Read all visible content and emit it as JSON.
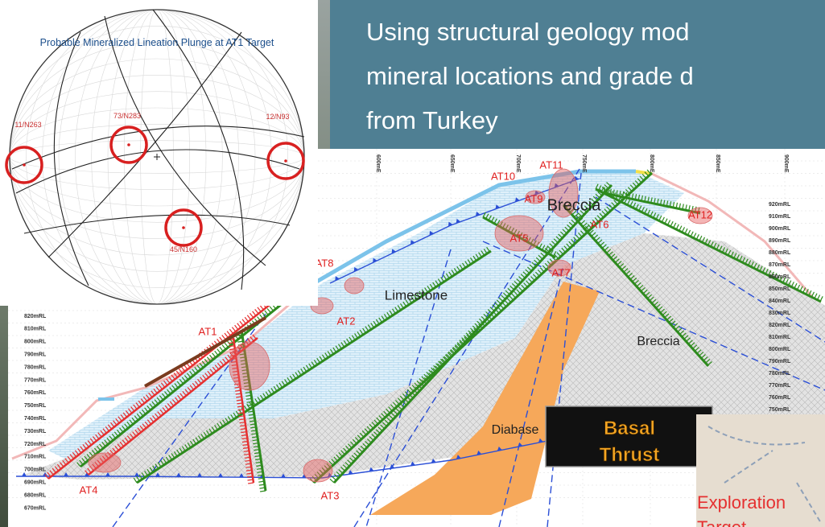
{
  "header": {
    "lines": [
      "Using structural geology mod",
      "mineral locations and grade d",
      "from Turkey"
    ]
  },
  "stereonet": {
    "title": "Probable Mineralized Lineation Plunge at AT1 Target",
    "labels": [
      "11/N263",
      "73/N283",
      "12/N93",
      "45/N160"
    ]
  },
  "cross_section": {
    "targets": [
      "AT1",
      "AT2",
      "AT3",
      "AT4",
      "AT5",
      "AT6",
      "AT7",
      "AT8",
      "AT9",
      "AT10",
      "AT11",
      "AT12"
    ],
    "units": [
      "Breccia",
      "Limestone",
      "Breccia",
      "Diabase"
    ],
    "easting_labels": [
      "600mE",
      "650mE",
      "700mE",
      "750mE",
      "800mE",
      "850mE",
      "900mE"
    ],
    "rl_left": [
      "820mRL",
      "810mRL",
      "800mRL",
      "790mRL",
      "780mRL",
      "770mRL",
      "760mRL",
      "750mRL",
      "740mRL",
      "730mRL",
      "720mRL",
      "710mRL",
      "700mRL",
      "690mRL",
      "680mRL",
      "670mRL"
    ],
    "rl_right": [
      "920mRL",
      "910mRL",
      "900mRL",
      "890mRL",
      "880mRL",
      "870mRL",
      "860mRL",
      "850mRL",
      "840mRL",
      "830mRL",
      "820mRL",
      "810mRL",
      "800mRL",
      "790mRL",
      "780mRL",
      "770mRL",
      "760mRL",
      "750mRL"
    ]
  },
  "callout": {
    "lines": [
      "Basal",
      "Thrust"
    ]
  },
  "inset": {
    "lines": [
      "Exploration",
      "Target"
    ]
  }
}
